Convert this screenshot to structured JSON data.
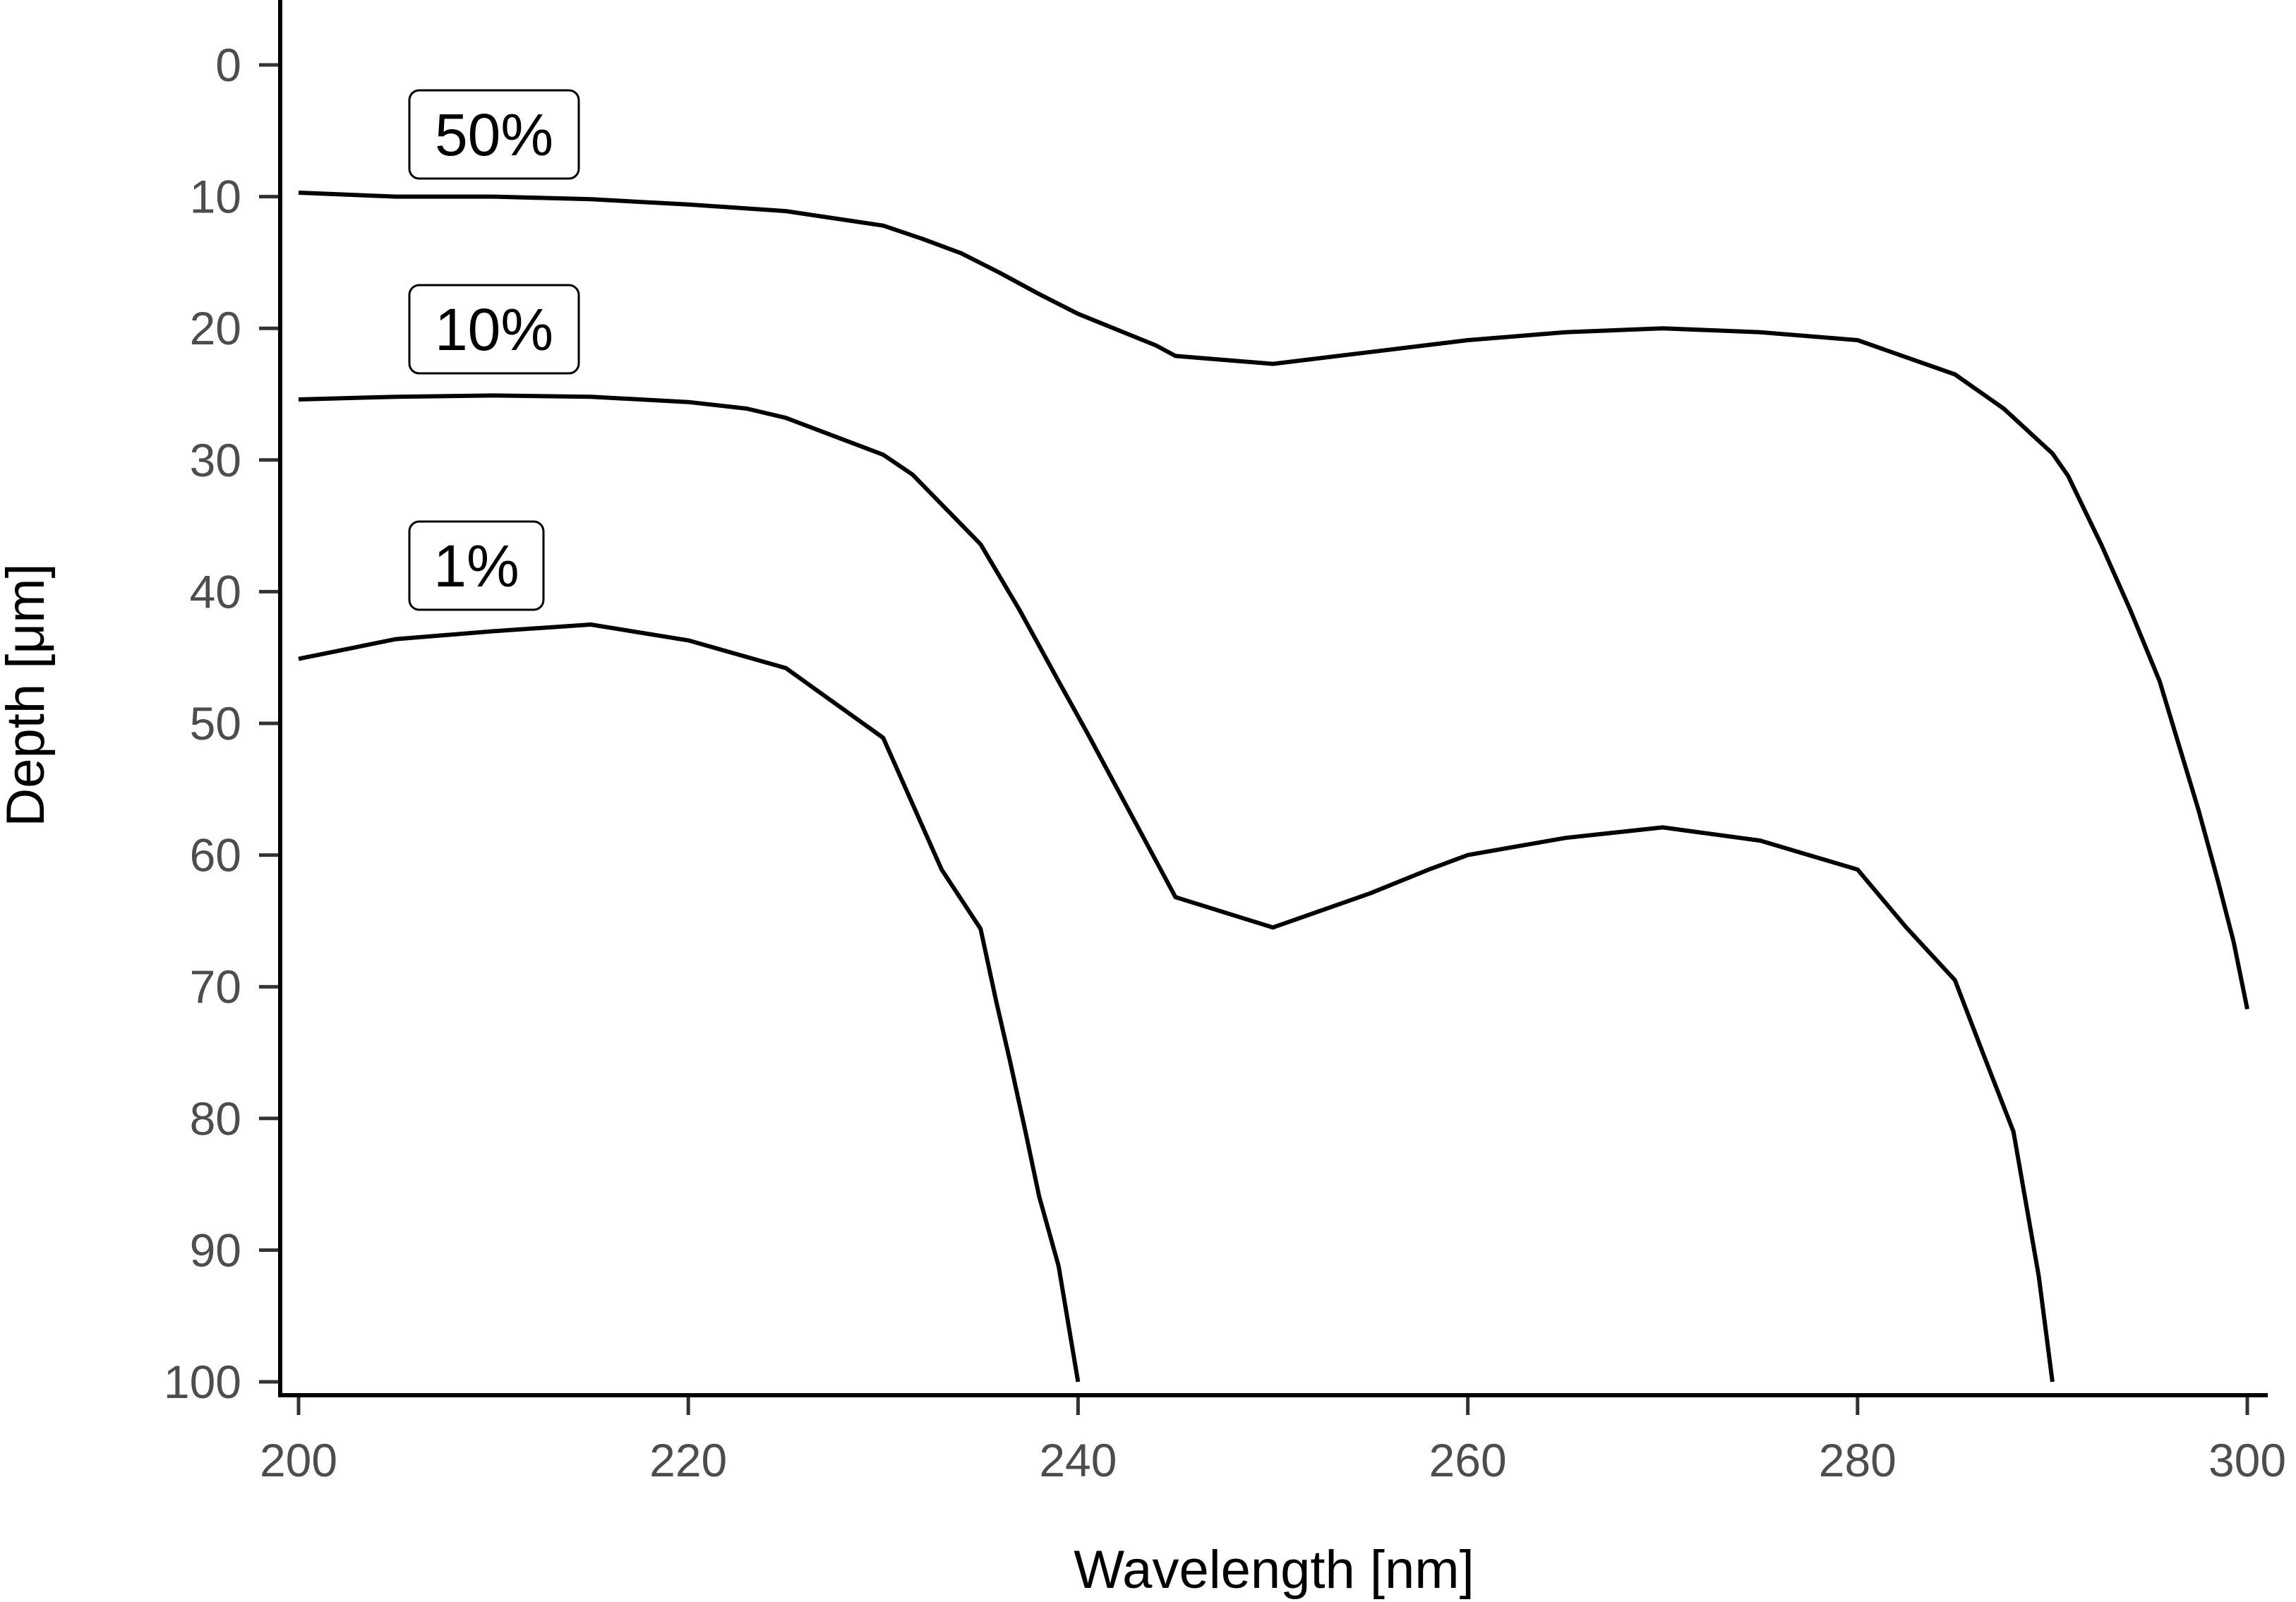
{
  "chart_data": {
    "type": "line",
    "xlabel": "Wavelength [nm]",
    "ylabel": "Depth [μm]",
    "xlim": [
      200,
      300
    ],
    "ylim": [
      0,
      100
    ],
    "y_inverted": true,
    "x_ticks": [
      "200",
      "220",
      "240",
      "260",
      "280",
      "300"
    ],
    "y_ticks": [
      "0",
      "10",
      "20",
      "30",
      "40",
      "50",
      "60",
      "70",
      "80",
      "90",
      "100"
    ],
    "grid": false,
    "series": [
      {
        "name": "50%",
        "x": [
          200,
          205,
          210,
          215,
          220,
          225,
          230,
          232,
          234,
          236,
          238,
          240,
          244,
          245,
          250,
          255,
          260,
          265,
          270,
          275,
          280,
          285,
          287.5,
          290,
          290.8,
          292.5,
          294,
          295.5,
          296.5,
          297.5,
          298.5,
          299.3,
          300
        ],
        "y": [
          9.7,
          10.0,
          10.0,
          10.2,
          10.6,
          11.1,
          12.2,
          13.2,
          14.3,
          15.8,
          17.4,
          18.9,
          21.3,
          22.1,
          22.7,
          21.8,
          20.9,
          20.3,
          20.0,
          20.3,
          20.9,
          23.5,
          26.1,
          29.5,
          31.2,
          36.4,
          41.4,
          46.8,
          51.7,
          56.6,
          62.0,
          66.6,
          71.7
        ]
      },
      {
        "name": "10%",
        "x": [
          200,
          205,
          210,
          215,
          220,
          223,
          225,
          230,
          231.5,
          235,
          237,
          239,
          240.5,
          245,
          250,
          255,
          258,
          260,
          265,
          270,
          275,
          280,
          282.5,
          285,
          286.5,
          288,
          289.3,
          290
        ],
        "y": [
          25.4,
          25.2,
          25.1,
          25.2,
          25.6,
          26.1,
          26.8,
          29.6,
          31.1,
          36.4,
          41.4,
          46.8,
          50.8,
          63.2,
          65.5,
          62.9,
          61.1,
          60.0,
          58.7,
          57.9,
          58.9,
          61.1,
          65.5,
          69.5,
          75.3,
          81.0,
          92.0,
          100.0
        ]
      },
      {
        "name": "1%",
        "x": [
          200,
          205,
          210,
          215,
          220,
          225,
          230,
          231.5,
          233,
          235,
          235.8,
          236.5,
          237.3,
          238,
          239,
          240
        ],
        "y": [
          45.1,
          43.6,
          43.0,
          42.5,
          43.7,
          45.8,
          51.1,
          56.1,
          61.1,
          65.6,
          71.1,
          75.6,
          81.0,
          85.9,
          91.2,
          100.0
        ]
      }
    ],
    "annotations": [
      "50%",
      "10%",
      "1%"
    ]
  }
}
